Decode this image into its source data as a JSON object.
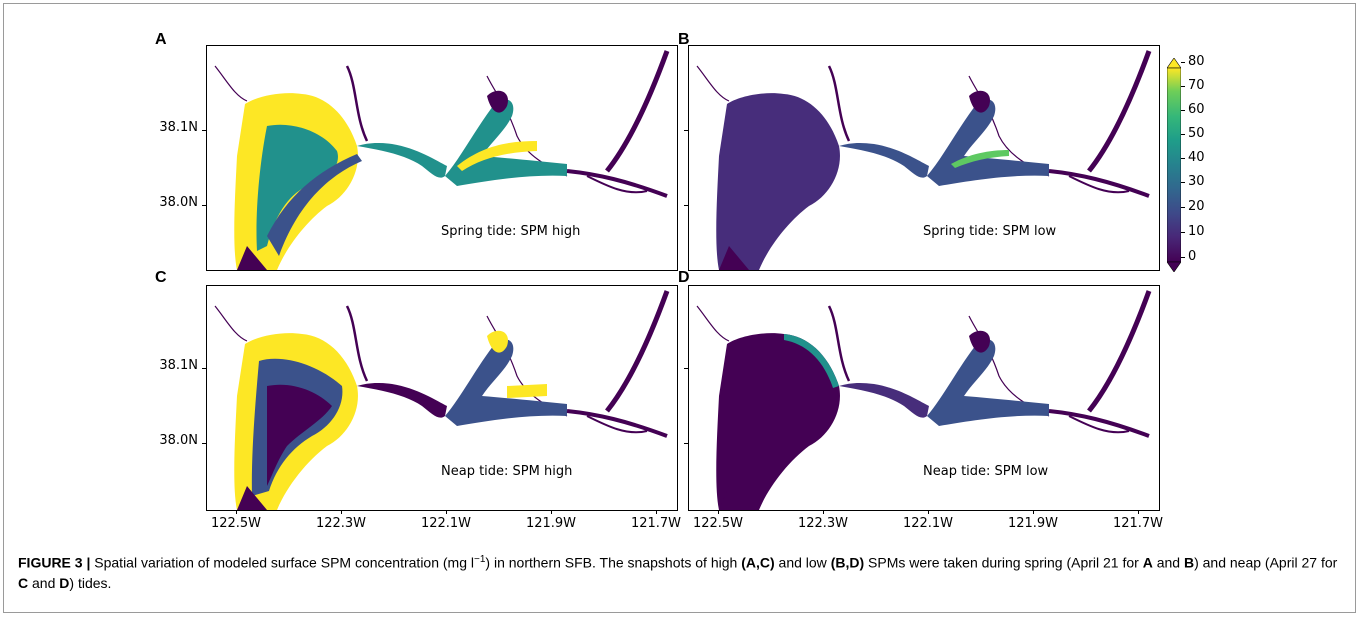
{
  "panels": [
    {
      "letter": "A",
      "label": "Spring tide: SPM high"
    },
    {
      "letter": "B",
      "label": "Spring tide: SPM low"
    },
    {
      "letter": "C",
      "label": "Neap tide: SPM high"
    },
    {
      "letter": "D",
      "label": "Neap tide: SPM low"
    }
  ],
  "y_ticks": [
    "38.1N",
    "38.0N"
  ],
  "x_ticks": [
    "122.5W",
    "122.3W",
    "122.1W",
    "121.9W",
    "121.7W"
  ],
  "colorbar": {
    "ticks": [
      "80",
      "70",
      "60",
      "50",
      "40",
      "30",
      "20",
      "10",
      "0"
    ],
    "colormap": "viridis",
    "range": [
      0,
      80
    ],
    "extend": "both"
  },
  "caption": {
    "figure_label": "FIGURE 3 |",
    "part1": " Spatial variation of modeled surface SPM concentration (mg l",
    "exponent": "−1",
    "part2": ") in northern SFB. The snapshots of high ",
    "high_refs": "(A,C)",
    "part3": " and low ",
    "low_refs": "(B,D)",
    "part4": " SPMs were taken during spring (April 21 for ",
    "ref_a": "A",
    "and1": " and ",
    "ref_b": "B",
    "part5": ") and neap (April 27 for ",
    "ref_c": "C",
    "and2": " and ",
    "ref_d": "D",
    "part6": ") tides."
  },
  "colors": {
    "low": "#440154",
    "mid_low": "#3b528b",
    "mid": "#21918c",
    "mid_high": "#5ec962",
    "high": "#fde725",
    "river": "#440154"
  }
}
